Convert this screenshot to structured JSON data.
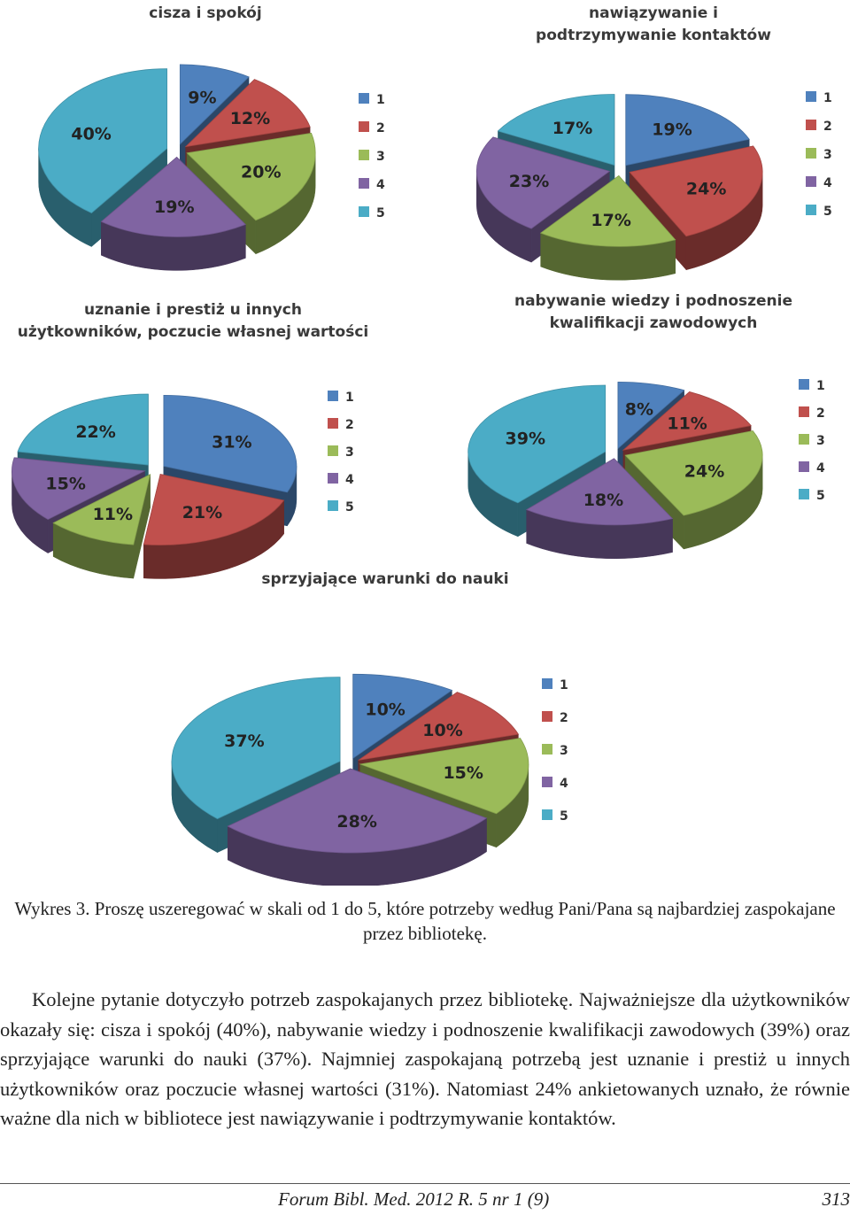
{
  "colors": {
    "1": "#4f81bd",
    "2": "#c0504d",
    "3": "#9bbb59",
    "4": "#8064a2",
    "5": "#4bacc6"
  },
  "legend_labels": [
    "1",
    "2",
    "3",
    "4",
    "5"
  ],
  "chart_data": [
    {
      "type": "pie",
      "title": "cisza i spokój",
      "categories": [
        "1",
        "2",
        "3",
        "4",
        "5"
      ],
      "values": [
        9,
        12,
        20,
        19,
        40
      ],
      "labels": [
        "9%",
        "12%",
        "20%",
        "19%",
        "40%"
      ]
    },
    {
      "type": "pie",
      "title": "nawiązywanie i podtrzymywanie kontaktów",
      "categories": [
        "1",
        "2",
        "3",
        "4",
        "5"
      ],
      "values": [
        19,
        24,
        17,
        23,
        17
      ],
      "labels": [
        "19%",
        "24%",
        "17%",
        "23%",
        "17%"
      ]
    },
    {
      "type": "pie",
      "title": "uznanie i prestiż u innych użytkowników, poczucie własnej wartości",
      "categories": [
        "1",
        "2",
        "3",
        "4",
        "5"
      ],
      "values": [
        31,
        21,
        11,
        15,
        22
      ],
      "labels": [
        "31%",
        "21%",
        "11%",
        "15%",
        "22%"
      ]
    },
    {
      "type": "pie",
      "title": "nabywanie wiedzy i podnoszenie kwalifikacji zawodowych",
      "categories": [
        "1",
        "2",
        "3",
        "4",
        "5"
      ],
      "values": [
        8,
        11,
        24,
        18,
        39
      ],
      "labels": [
        "8%",
        "11%",
        "24%",
        "18%",
        "39%"
      ]
    },
    {
      "type": "pie",
      "title": "sprzyjające warunki do nauki",
      "categories": [
        "1",
        "2",
        "3",
        "4",
        "5"
      ],
      "values": [
        10,
        10,
        15,
        28,
        37
      ],
      "labels": [
        "10%",
        "10%",
        "15%",
        "28%",
        "37%"
      ]
    }
  ],
  "caption": "Wykres 3. Proszę uszeregować w skali od 1 do 5, które potrzeby według Pani/Pana są najbardziej zaspokajane przez bibliotekę.",
  "paragraph": "Kolejne pytanie dotyczyło potrzeb zaspokajanych przez bibliotekę. Najważniejsze dla użytkowników okazały się: cisza i spokój (40%), nabywanie wiedzy i podnoszenie kwalifikacji zawodowych (39%) oraz sprzyjające warunki do nauki (37%). Najmniej zaspokajaną potrzebą jest uznanie i prestiż u innych użytkowników oraz poczucie własnej wartości (31%). Natomiast 24% ankietowanych uznało, że równie ważne dla nich w bibliotece jest nawiązywanie i podtrzymywanie kontaktów.",
  "footer": {
    "journal": "Forum Bibl. Med. 2012 R. 5 nr 1 (9)",
    "page": "313"
  }
}
